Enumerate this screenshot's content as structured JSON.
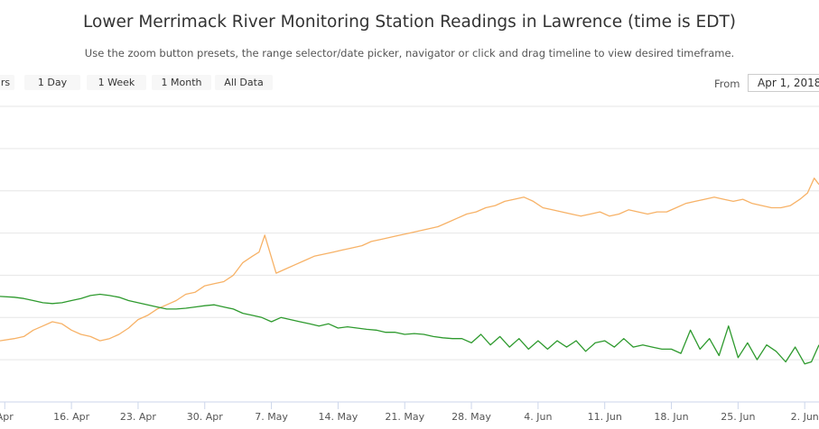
{
  "header": {
    "title": "Lower Merrimack River Monitoring Station Readings in Lawrence (time is EDT)",
    "subtitle": "Use the zoom button presets, the range selector/date picker, navigator or click and drag timeline to view desired timeframe."
  },
  "range_selector": {
    "buttons": [
      "rs",
      "1 Day",
      "1 Week",
      "1 Month",
      "All Data"
    ],
    "from_label": "From",
    "from_value": "Apr 1, 2018"
  },
  "colors": {
    "orange_series": "#f7b267",
    "green_series": "#2e9a2e",
    "grid": "#e6e6e6"
  },
  "chart_data": {
    "type": "line",
    "title": "Lower Merrimack River Monitoring Station Readings in Lawrence (time is EDT)",
    "x_label_unit": "day of year 2018",
    "x_ticks": [
      {
        "label": "Apr",
        "day": 0
      },
      {
        "label": "16. Apr",
        "day": 7
      },
      {
        "label": "23. Apr",
        "day": 14
      },
      {
        "label": "30. Apr",
        "day": 21
      },
      {
        "label": "7. May",
        "day": 28
      },
      {
        "label": "14. May",
        "day": 35
      },
      {
        "label": "21. May",
        "day": 42
      },
      {
        "label": "28. May",
        "day": 49
      },
      {
        "label": "4. Jun",
        "day": 56
      },
      {
        "label": "11. Jun",
        "day": 63
      },
      {
        "label": "18. Jun",
        "day": 70
      },
      {
        "label": "25. Jun",
        "day": 77
      },
      {
        "label": "2. Jun",
        "day": 84
      }
    ],
    "xlim": [
      -0.5,
      85.5
    ],
    "ylim": [
      0,
      7
    ],
    "gridlines": [
      1,
      2,
      3,
      4,
      5,
      6,
      7
    ],
    "series": [
      {
        "name": "orange",
        "x": [
          -0.5,
          1,
          2,
          3,
          4,
          5,
          6,
          7,
          8,
          9,
          10,
          11,
          12,
          13,
          14,
          15,
          16,
          17,
          18,
          19,
          20,
          21,
          22,
          23,
          24,
          25,
          26,
          26.7,
          27.3,
          28.5,
          29.5,
          30.5,
          31.5,
          32.5,
          33.5,
          34.5,
          35.5,
          36.5,
          37.5,
          38.5,
          39.5,
          40.5,
          41.5,
          42.5,
          43.5,
          44.5,
          45.5,
          46.5,
          47.5,
          48.5,
          49.5,
          50.5,
          51.5,
          52.5,
          53.5,
          54.5,
          55.5,
          56.5,
          57.5,
          58.5,
          59.5,
          60.5,
          61.5,
          62.5,
          63.5,
          64.5,
          65.5,
          66.5,
          67.5,
          68.5,
          69.5,
          70.5,
          71.5,
          72.5,
          73.5,
          74.5,
          75.5,
          76.5,
          77.5,
          78.5,
          79.5,
          80.5,
          81.5,
          82.5,
          83.5,
          84.3,
          85,
          85.5
        ],
        "y": [
          1.45,
          1.5,
          1.55,
          1.7,
          1.8,
          1.9,
          1.85,
          1.7,
          1.6,
          1.55,
          1.45,
          1.5,
          1.6,
          1.75,
          1.95,
          2.05,
          2.2,
          2.3,
          2.4,
          2.55,
          2.6,
          2.75,
          2.8,
          2.85,
          3.0,
          3.3,
          3.45,
          3.55,
          3.95,
          3.05,
          3.15,
          3.25,
          3.35,
          3.45,
          3.5,
          3.55,
          3.6,
          3.65,
          3.7,
          3.8,
          3.85,
          3.9,
          3.95,
          4.0,
          4.05,
          4.1,
          4.15,
          4.25,
          4.35,
          4.45,
          4.5,
          4.6,
          4.65,
          4.75,
          4.8,
          4.85,
          4.75,
          4.6,
          4.55,
          4.5,
          4.45,
          4.4,
          4.45,
          4.5,
          4.4,
          4.45,
          4.55,
          4.5,
          4.45,
          4.5,
          4.5,
          4.6,
          4.7,
          4.75,
          4.8,
          4.85,
          4.8,
          4.75,
          4.8,
          4.7,
          4.65,
          4.6,
          4.6,
          4.65,
          4.8,
          4.95,
          5.3,
          5.15
        ]
      },
      {
        "name": "green",
        "x": [
          -0.5,
          1,
          2,
          3,
          4,
          5,
          6,
          7,
          8,
          9,
          10,
          11,
          12,
          13,
          14,
          15,
          16,
          17,
          18,
          19,
          20,
          21,
          22,
          23,
          24,
          25,
          26,
          27,
          28,
          29,
          30,
          31,
          32,
          33,
          34,
          35,
          36,
          37,
          38,
          39,
          40,
          41,
          42,
          43,
          44,
          45,
          46,
          47,
          48,
          49,
          50,
          51,
          52,
          53,
          54,
          55,
          56,
          57,
          58,
          59,
          60,
          61,
          62,
          63,
          64,
          65,
          66,
          67,
          68,
          69,
          70,
          71,
          72,
          73,
          74,
          75,
          76,
          77,
          78,
          79,
          80,
          81,
          82,
          83,
          84,
          84.7,
          85.5
        ],
        "y": [
          2.5,
          2.48,
          2.45,
          2.4,
          2.35,
          2.33,
          2.35,
          2.4,
          2.45,
          2.52,
          2.55,
          2.52,
          2.48,
          2.4,
          2.35,
          2.3,
          2.25,
          2.2,
          2.2,
          2.22,
          2.25,
          2.28,
          2.3,
          2.25,
          2.2,
          2.1,
          2.05,
          2.0,
          1.9,
          2.0,
          1.95,
          1.9,
          1.85,
          1.8,
          1.85,
          1.75,
          1.78,
          1.75,
          1.72,
          1.7,
          1.65,
          1.65,
          1.6,
          1.62,
          1.6,
          1.55,
          1.52,
          1.5,
          1.5,
          1.4,
          1.6,
          1.35,
          1.55,
          1.3,
          1.5,
          1.25,
          1.45,
          1.25,
          1.45,
          1.3,
          1.45,
          1.2,
          1.4,
          1.45,
          1.3,
          1.5,
          1.3,
          1.35,
          1.3,
          1.25,
          1.25,
          1.15,
          1.7,
          1.25,
          1.5,
          1.1,
          1.8,
          1.05,
          1.4,
          1.0,
          1.35,
          1.2,
          0.95,
          1.3,
          0.9,
          0.95,
          1.35
        ]
      }
    ]
  }
}
